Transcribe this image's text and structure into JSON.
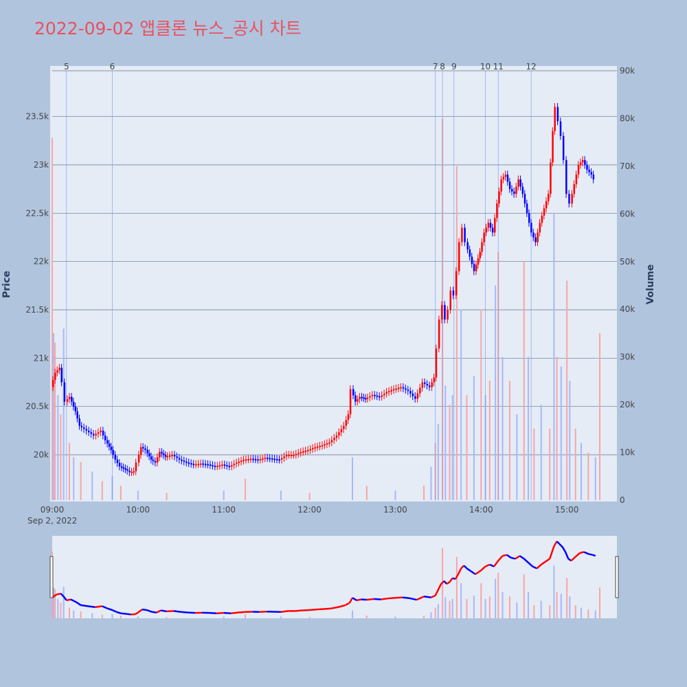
{
  "title": "2022-09-02 앱클론 뉴스_공시 차트",
  "colors": {
    "background": "#b0c4de",
    "plot_bg": "#e5ecf6",
    "up": "#ff0000",
    "down": "#0000ff",
    "title": "#e8515e"
  },
  "chart_data": {
    "type": "candlestick",
    "x_date_label": "Sep 2, 2022",
    "x_ticks": [
      "09:00",
      "10:00",
      "11:00",
      "12:00",
      "13:00",
      "14:00",
      "15:00"
    ],
    "y_label": "Price",
    "y2_label": "Volume",
    "y_ticks": [
      {
        "value": 20000,
        "label": "20k"
      },
      {
        "value": 20500,
        "label": "20.5k"
      },
      {
        "value": 21000,
        "label": "21k"
      },
      {
        "value": 21500,
        "label": "21.5k"
      },
      {
        "value": 22000,
        "label": "22k"
      },
      {
        "value": 22500,
        "label": "22.5k"
      },
      {
        "value": 23000,
        "label": "23k"
      },
      {
        "value": 23500,
        "label": "23.5k"
      }
    ],
    "y2_ticks": [
      {
        "value": 0,
        "label": "0"
      },
      {
        "value": 10000,
        "label": "10k"
      },
      {
        "value": 20000,
        "label": "20k"
      },
      {
        "value": 30000,
        "label": "30k"
      },
      {
        "value": 40000,
        "label": "40k"
      },
      {
        "value": 50000,
        "label": "50k"
      },
      {
        "value": 60000,
        "label": "60k"
      },
      {
        "value": 70000,
        "label": "70k"
      },
      {
        "value": 80000,
        "label": "80k"
      },
      {
        "value": 90000,
        "label": "90k"
      }
    ],
    "news_markers": [
      {
        "label": "5",
        "time": "09:10"
      },
      {
        "label": "6",
        "time": "09:42"
      },
      {
        "label": "7",
        "time": "13:28"
      },
      {
        "label": "8",
        "time": "13:33"
      },
      {
        "label": "9",
        "time": "13:41"
      },
      {
        "label": "10",
        "time": "14:03"
      },
      {
        "label": "11",
        "time": "14:12"
      },
      {
        "label": "12",
        "time": "14:35"
      }
    ],
    "price_path": [
      [
        "09:00",
        20700
      ],
      [
        "09:03",
        20850
      ],
      [
        "09:06",
        20900
      ],
      [
        "09:08",
        20750
      ],
      [
        "09:10",
        20550
      ],
      [
        "09:13",
        20600
      ],
      [
        "09:17",
        20450
      ],
      [
        "09:20",
        20300
      ],
      [
        "09:25",
        20250
      ],
      [
        "09:30",
        20200
      ],
      [
        "09:35",
        20250
      ],
      [
        "09:38",
        20150
      ],
      [
        "09:42",
        20050
      ],
      [
        "09:45",
        19950
      ],
      [
        "09:48",
        19880
      ],
      [
        "09:52",
        19850
      ],
      [
        "09:55",
        19820
      ],
      [
        "09:58",
        19830
      ],
      [
        "10:00",
        19920
      ],
      [
        "10:03",
        20080
      ],
      [
        "10:06",
        20050
      ],
      [
        "10:10",
        19950
      ],
      [
        "10:13",
        19920
      ],
      [
        "10:16",
        20030
      ],
      [
        "10:20",
        19980
      ],
      [
        "10:25",
        20000
      ],
      [
        "10:30",
        19950
      ],
      [
        "10:35",
        19920
      ],
      [
        "10:40",
        19900
      ],
      [
        "10:45",
        19910
      ],
      [
        "10:50",
        19900
      ],
      [
        "10:55",
        19880
      ],
      [
        "11:00",
        19900
      ],
      [
        "11:05",
        19880
      ],
      [
        "11:10",
        19920
      ],
      [
        "11:15",
        19950
      ],
      [
        "11:20",
        19960
      ],
      [
        "11:25",
        19950
      ],
      [
        "11:30",
        19970
      ],
      [
        "11:35",
        19960
      ],
      [
        "11:40",
        19950
      ],
      [
        "11:45",
        20000
      ],
      [
        "11:50",
        20000
      ],
      [
        "11:55",
        20030
      ],
      [
        "12:00",
        20050
      ],
      [
        "12:05",
        20080
      ],
      [
        "12:10",
        20100
      ],
      [
        "12:15",
        20130
      ],
      [
        "12:20",
        20200
      ],
      [
        "12:25",
        20300
      ],
      [
        "12:28",
        20420
      ],
      [
        "12:30",
        20680
      ],
      [
        "12:33",
        20550
      ],
      [
        "12:36",
        20600
      ],
      [
        "12:40",
        20580
      ],
      [
        "12:45",
        20620
      ],
      [
        "12:50",
        20600
      ],
      [
        "12:55",
        20650
      ],
      [
        "13:00",
        20680
      ],
      [
        "13:05",
        20700
      ],
      [
        "13:10",
        20660
      ],
      [
        "13:15",
        20580
      ],
      [
        "13:20",
        20750
      ],
      [
        "13:25",
        20700
      ],
      [
        "13:28",
        20800
      ],
      [
        "13:30",
        21100
      ],
      [
        "13:32",
        21400
      ],
      [
        "13:34",
        21550
      ],
      [
        "13:36",
        21400
      ],
      [
        "13:38",
        21500
      ],
      [
        "13:40",
        21700
      ],
      [
        "13:42",
        21650
      ],
      [
        "13:44",
        21900
      ],
      [
        "13:46",
        22200
      ],
      [
        "13:48",
        22350
      ],
      [
        "13:50",
        22200
      ],
      [
        "13:53",
        22050
      ],
      [
        "13:56",
        21900
      ],
      [
        "14:00",
        22100
      ],
      [
        "14:03",
        22300
      ],
      [
        "14:06",
        22400
      ],
      [
        "14:09",
        22300
      ],
      [
        "14:12",
        22600
      ],
      [
        "14:15",
        22850
      ],
      [
        "14:18",
        22900
      ],
      [
        "14:21",
        22750
      ],
      [
        "14:24",
        22700
      ],
      [
        "14:27",
        22850
      ],
      [
        "14:30",
        22700
      ],
      [
        "14:33",
        22500
      ],
      [
        "14:36",
        22300
      ],
      [
        "14:39",
        22200
      ],
      [
        "14:42",
        22400
      ],
      [
        "14:45",
        22550
      ],
      [
        "14:48",
        22700
      ],
      [
        "14:51",
        23350
      ],
      [
        "14:53",
        23600
      ],
      [
        "14:55",
        23450
      ],
      [
        "14:57",
        23300
      ],
      [
        "14:59",
        23050
      ],
      [
        "15:01",
        22700
      ],
      [
        "15:03",
        22600
      ],
      [
        "15:06",
        22800
      ],
      [
        "15:09",
        23000
      ],
      [
        "15:12",
        23050
      ],
      [
        "15:15",
        22950
      ],
      [
        "15:18",
        22900
      ],
      [
        "15:20",
        22850
      ]
    ],
    "volume_bars": [
      [
        "09:00",
        76000
      ],
      [
        "09:01",
        35000
      ],
      [
        "09:02",
        33000
      ],
      [
        "09:04",
        22000
      ],
      [
        "09:06",
        18000
      ],
      [
        "09:08",
        36000
      ],
      [
        "09:12",
        12000
      ],
      [
        "09:15",
        9000
      ],
      [
        "09:20",
        8000
      ],
      [
        "09:28",
        6000
      ],
      [
        "09:35",
        4000
      ],
      [
        "09:42",
        5000
      ],
      [
        "09:48",
        3000
      ],
      [
        "10:00",
        2000
      ],
      [
        "10:20",
        1500
      ],
      [
        "11:00",
        2000
      ],
      [
        "11:15",
        4500
      ],
      [
        "11:40",
        2000
      ],
      [
        "12:00",
        1500
      ],
      [
        "12:30",
        9000
      ],
      [
        "12:40",
        3000
      ],
      [
        "13:00",
        2000
      ],
      [
        "13:20",
        3000
      ],
      [
        "13:25",
        7000
      ],
      [
        "13:28",
        12000
      ],
      [
        "13:30",
        16000
      ],
      [
        "13:33",
        80000
      ],
      [
        "13:35",
        24000
      ],
      [
        "13:38",
        20000
      ],
      [
        "13:40",
        22000
      ],
      [
        "13:43",
        70000
      ],
      [
        "13:46",
        40000
      ],
      [
        "13:50",
        22000
      ],
      [
        "13:55",
        26000
      ],
      [
        "14:00",
        40000
      ],
      [
        "14:03",
        22000
      ],
      [
        "14:06",
        25000
      ],
      [
        "14:10",
        45000
      ],
      [
        "14:12",
        52000
      ],
      [
        "14:15",
        30000
      ],
      [
        "14:20",
        25000
      ],
      [
        "14:25",
        18000
      ],
      [
        "14:30",
        50000
      ],
      [
        "14:33",
        30000
      ],
      [
        "14:37",
        15000
      ],
      [
        "14:42",
        20000
      ],
      [
        "14:48",
        15000
      ],
      [
        "14:51",
        60000
      ],
      [
        "14:53",
        30000
      ],
      [
        "14:56",
        28000
      ],
      [
        "15:00",
        46000
      ],
      [
        "15:02",
        25000
      ],
      [
        "15:06",
        15000
      ],
      [
        "15:10",
        12000
      ],
      [
        "15:15",
        10000
      ],
      [
        "15:20",
        9000
      ],
      [
        "15:23",
        35000
      ]
    ]
  }
}
